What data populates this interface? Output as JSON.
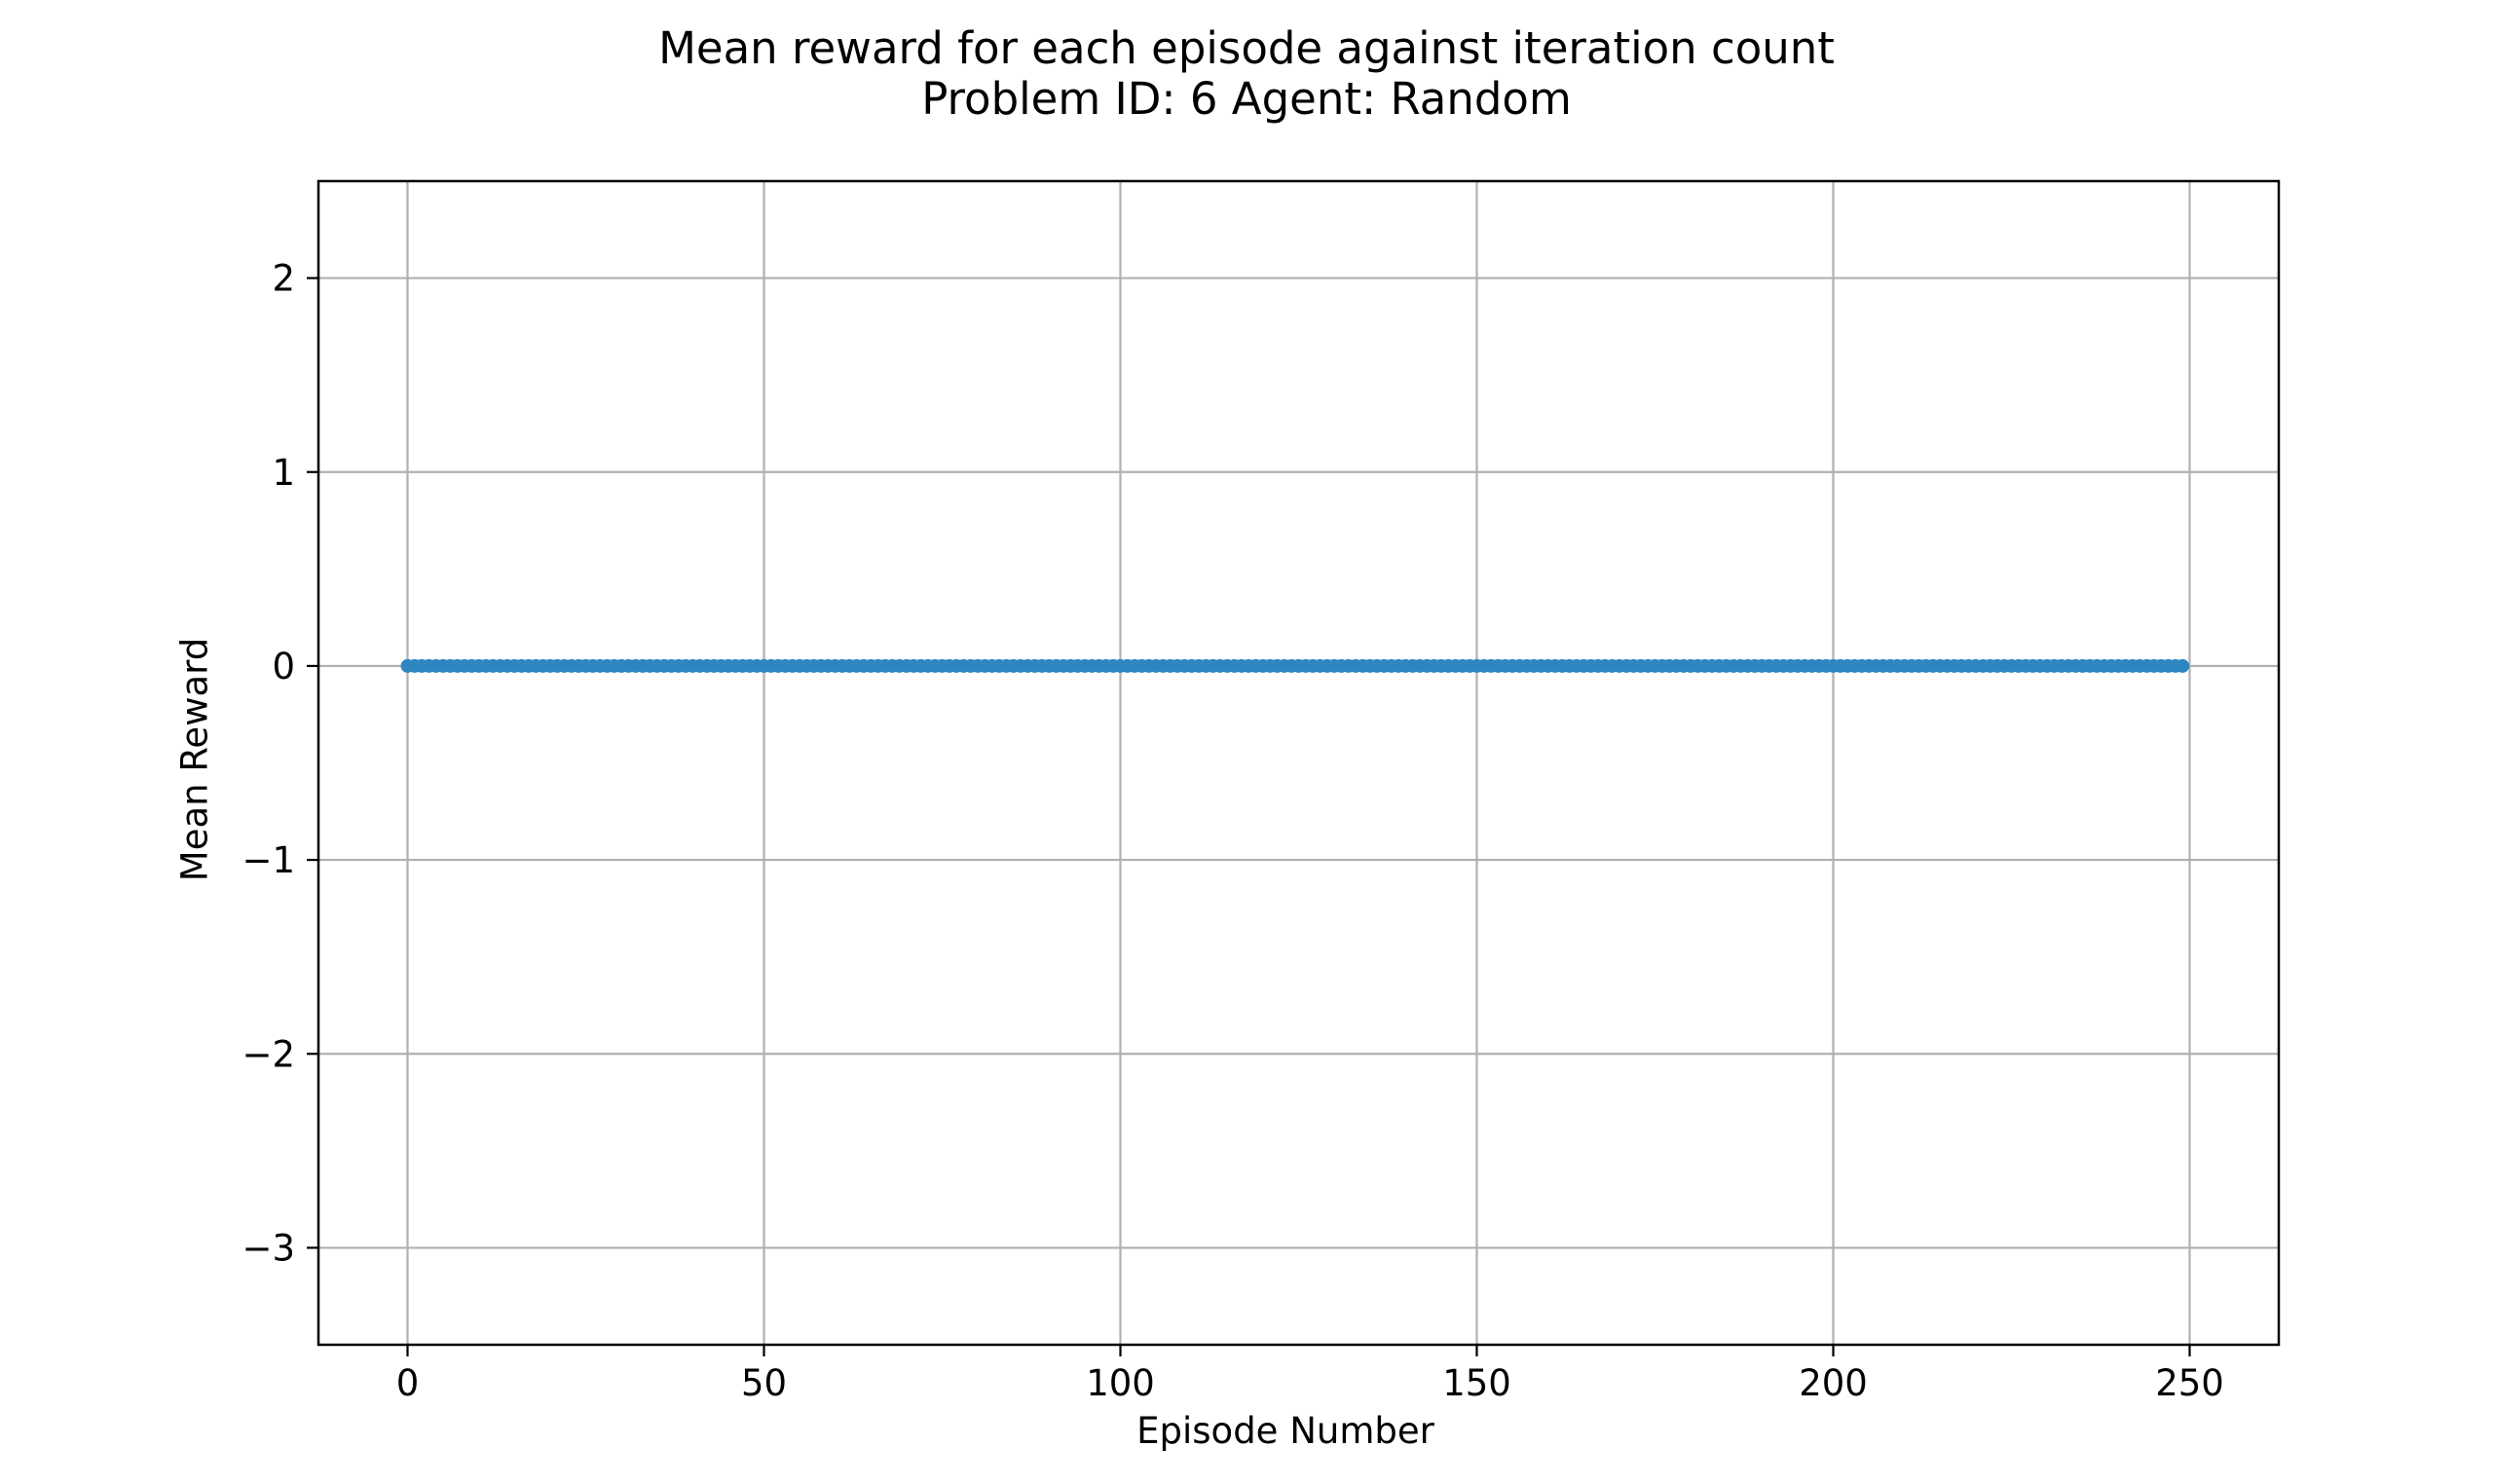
{
  "chart_data": {
    "type": "scatter",
    "title": "Mean reward for each episode against iteration count",
    "subtitle": "Problem ID: 6 Agent: Random",
    "xlabel": "Episode Number",
    "ylabel": "Mean Reward",
    "xlim": [
      -12.5,
      262.5
    ],
    "ylim": [
      -3.5,
      2.5
    ],
    "xticks": [
      0,
      50,
      100,
      150,
      200,
      250
    ],
    "xtick_labels": [
      "0",
      "50",
      "100",
      "150",
      "200",
      "250"
    ],
    "yticks": [
      -3,
      -2,
      -1,
      0,
      1,
      2
    ],
    "ytick_labels": [
      "−3",
      "−2",
      "−1",
      "0",
      "1",
      "2"
    ],
    "grid": true,
    "series": [
      {
        "color": "#2e86c1",
        "x_start": 0,
        "x_end": 249,
        "x_step": 1,
        "y_constant": 0
      }
    ]
  }
}
